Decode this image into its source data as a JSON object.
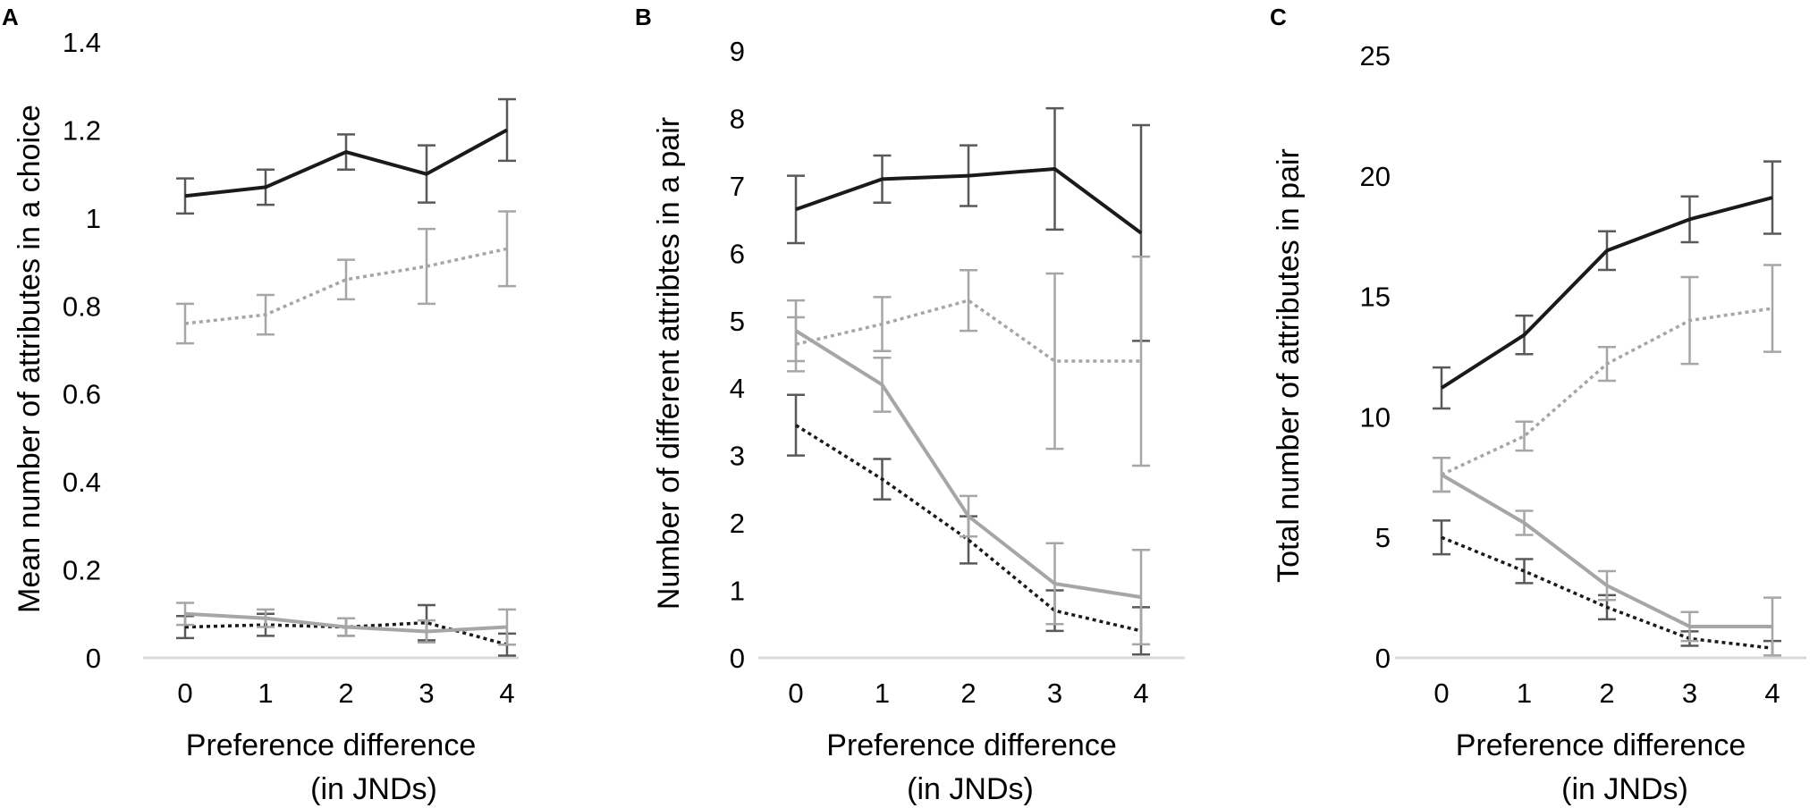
{
  "figure": {
    "panels": [
      {
        "letter": "A"
      },
      {
        "letter": "B"
      },
      {
        "letter": "C"
      }
    ]
  },
  "colors": {
    "black_series": "#1a1a1a",
    "gray_series": "#a6a6a6",
    "black_errorbar": "#595959",
    "gray_errorbar": "#a6a6a6",
    "axis": "#d9d9d9"
  },
  "chart_data": [
    {
      "type": "line",
      "panel": "A",
      "title": "",
      "xlabel": [
        "Preference difference",
        "(in JNDs)"
      ],
      "ylabel": "Mean number of attributes in a choice",
      "x": [
        0,
        1,
        2,
        3,
        4
      ],
      "xticklabels": [
        "0",
        "1",
        "2",
        "3",
        "4"
      ],
      "ylim": [
        0,
        1.4
      ],
      "yticks": [
        0,
        0.2,
        0.4,
        0.6,
        0.8,
        1,
        1.2,
        1.4
      ],
      "yticklabels": [
        "0",
        "0.2",
        "0.4",
        "0.6",
        "0.8",
        "1",
        "1.2",
        "1.4"
      ],
      "grid": false,
      "series": [
        {
          "name": "black solid",
          "style": "solid",
          "color": "#1a1a1a",
          "errcolor": "#595959",
          "values": [
            1.05,
            1.07,
            1.15,
            1.1,
            1.2
          ],
          "errors": [
            0.04,
            0.04,
            0.04,
            0.065,
            0.07
          ]
        },
        {
          "name": "gray dotted",
          "style": "dotted",
          "color": "#a6a6a6",
          "errcolor": "#a6a6a6",
          "values": [
            0.76,
            0.78,
            0.86,
            0.89,
            0.93
          ],
          "errors": [
            0.045,
            0.045,
            0.045,
            0.085,
            0.085
          ]
        },
        {
          "name": "black dotted",
          "style": "dotted",
          "color": "#1a1a1a",
          "errcolor": "#595959",
          "values": [
            0.07,
            0.075,
            0.07,
            0.08,
            0.03
          ],
          "errors": [
            0.025,
            0.025,
            0.02,
            0.04,
            0.025
          ]
        },
        {
          "name": "gray solid",
          "style": "solid",
          "color": "#a6a6a6",
          "errcolor": "#a6a6a6",
          "values": [
            0.1,
            0.09,
            0.07,
            0.06,
            0.07
          ],
          "errors": [
            0.025,
            0.02,
            0.02,
            0.025,
            0.04
          ]
        }
      ]
    },
    {
      "type": "line",
      "panel": "B",
      "title": "",
      "xlabel": [
        "Preference difference",
        "(in JNDs)"
      ],
      "ylabel": "Number of different attribtes in a pair",
      "x": [
        0,
        1,
        2,
        3,
        4
      ],
      "xticklabels": [
        "0",
        "1",
        "2",
        "3",
        "4"
      ],
      "ylim": [
        0,
        9
      ],
      "yticks": [
        0,
        1,
        2,
        3,
        4,
        5,
        6,
        7,
        8,
        9
      ],
      "yticklabels": [
        "0",
        "1",
        "2",
        "3",
        "4",
        "5",
        "6",
        "7",
        "8",
        "9"
      ],
      "grid": false,
      "series": [
        {
          "name": "black solid",
          "style": "solid",
          "color": "#1a1a1a",
          "errcolor": "#595959",
          "values": [
            6.65,
            7.1,
            7.15,
            7.25,
            6.3
          ],
          "errors": [
            0.5,
            0.35,
            0.45,
            0.9,
            1.6
          ]
        },
        {
          "name": "gray dotted",
          "style": "dotted",
          "color": "#a6a6a6",
          "errcolor": "#a6a6a6",
          "values": [
            4.65,
            4.95,
            5.3,
            4.4,
            4.4
          ],
          "errors": [
            0.4,
            0.4,
            0.45,
            1.3,
            1.55
          ]
        },
        {
          "name": "black dotted",
          "style": "dotted",
          "color": "#1a1a1a",
          "errcolor": "#595959",
          "values": [
            3.45,
            2.65,
            1.75,
            0.7,
            0.4
          ],
          "errors": [
            0.45,
            0.3,
            0.35,
            0.3,
            0.35
          ]
        },
        {
          "name": "gray solid",
          "style": "solid",
          "color": "#a6a6a6",
          "errcolor": "#a6a6a6",
          "values": [
            4.85,
            4.05,
            2.1,
            1.1,
            0.9
          ],
          "errors": [
            0.45,
            0.4,
            0.3,
            0.6,
            0.7
          ]
        }
      ]
    },
    {
      "type": "line",
      "panel": "C",
      "title": "",
      "xlabel": [
        "Preference difference",
        "(in JNDs)"
      ],
      "ylabel": "Total number of attributes in pair",
      "x": [
        0,
        1,
        2,
        3,
        4
      ],
      "xticklabels": [
        "0",
        "1",
        "2",
        "3",
        "4"
      ],
      "ylim": [
        0,
        25
      ],
      "yticks": [
        0,
        5,
        10,
        15,
        20,
        25
      ],
      "yticklabels": [
        "0",
        "5",
        "10",
        "15",
        "20",
        "25"
      ],
      "grid": false,
      "series": [
        {
          "name": "black solid",
          "style": "solid",
          "color": "#1a1a1a",
          "errcolor": "#595959",
          "values": [
            11.2,
            13.4,
            16.9,
            18.2,
            19.1
          ],
          "errors": [
            0.85,
            0.8,
            0.8,
            0.95,
            1.5
          ]
        },
        {
          "name": "gray dotted",
          "style": "dotted",
          "color": "#a6a6a6",
          "errcolor": "#a6a6a6",
          "values": [
            7.6,
            9.2,
            12.2,
            14.0,
            14.5
          ],
          "errors": [
            0.7,
            0.6,
            0.7,
            1.8,
            1.8
          ]
        },
        {
          "name": "black dotted",
          "style": "dotted",
          "color": "#1a1a1a",
          "errcolor": "#595959",
          "values": [
            5.0,
            3.6,
            2.1,
            0.8,
            0.4
          ],
          "errors": [
            0.7,
            0.5,
            0.5,
            0.3,
            0.3
          ]
        },
        {
          "name": "gray solid",
          "style": "solid",
          "color": "#a6a6a6",
          "errcolor": "#a6a6a6",
          "values": [
            7.6,
            5.6,
            3.0,
            1.3,
            1.3
          ],
          "errors": [
            0.7,
            0.5,
            0.6,
            0.6,
            1.2
          ]
        }
      ]
    }
  ]
}
